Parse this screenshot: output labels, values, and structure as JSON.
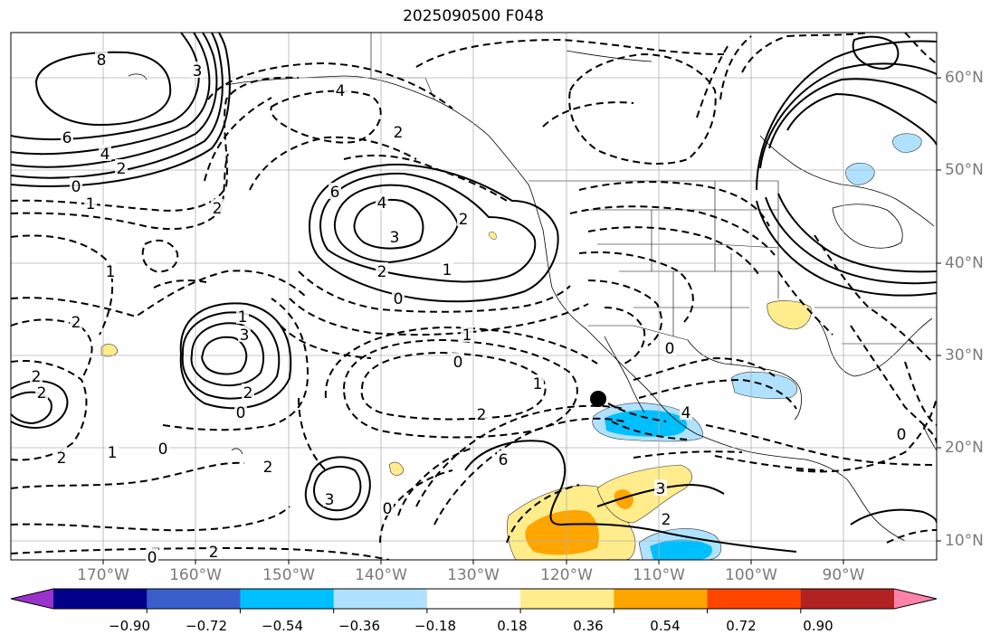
{
  "title": "2025090500 F048",
  "lat_labels": [
    "60°N",
    "50°N",
    "40°N",
    "30°N",
    "20°N",
    "10°N"
  ],
  "lon_labels": [
    "170°W",
    "160°W",
    "150°W",
    "140°W",
    "130°W",
    "120°W",
    "110°W",
    "100°W",
    "90°W"
  ],
  "colorbar": {
    "colors": [
      "#9a32cd",
      "#00008b",
      "#3a5fcd",
      "#00bfff",
      "#b0e2ff",
      "#ffffff",
      "#ffec8b",
      "#ffa500",
      "#ff4500",
      "#b22222",
      "#ff82ab"
    ],
    "tick_labels": [
      "−0.90",
      "−0.72",
      "−0.54",
      "−0.36",
      "−0.18",
      "0.18",
      "0.36",
      "0.54",
      "0.72",
      "0.90"
    ]
  },
  "contour_labels": [
    "8",
    "3",
    "6",
    "4",
    "2",
    "1",
    "0",
    "4",
    "2",
    "6",
    "4",
    "3",
    "2",
    "1",
    "0",
    "2",
    "2",
    "1",
    "2",
    "3",
    "1",
    "0",
    "2",
    "2",
    "2",
    "1",
    "0",
    "2",
    "2",
    "2",
    "0",
    "1",
    "0",
    "3",
    "0",
    "6",
    "4",
    "3",
    "2",
    "0",
    "1",
    "2",
    "0"
  ],
  "marker": "point"
}
